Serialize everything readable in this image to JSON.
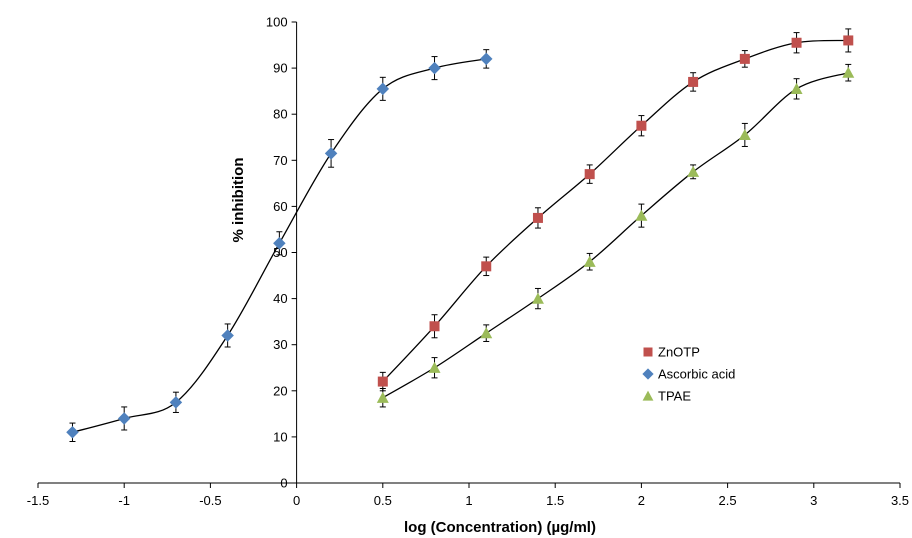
{
  "chart_data": {
    "type": "scatter",
    "xlabel": "log (Concentration) (µg/ml)",
    "ylabel": "% inhibition",
    "xlim": [
      -1.5,
      3.5
    ],
    "ylim": [
      0,
      100
    ],
    "x_ticks": [
      -1.5,
      -1,
      -0.5,
      0,
      0.5,
      1,
      1.5,
      2,
      2.5,
      3,
      3.5
    ],
    "x_tick_labels": [
      "-1.5",
      "-1",
      "-0.5",
      "0",
      "0.5",
      "1",
      "1.5",
      "2",
      "2.5",
      "3",
      "3.5"
    ],
    "y_ticks": [
      0,
      10,
      20,
      30,
      40,
      50,
      60,
      70,
      80,
      90,
      100
    ],
    "y_tick_labels": [
      "0",
      "10",
      "20",
      "30",
      "40",
      "50",
      "60",
      "70",
      "80",
      "90",
      "100"
    ],
    "grid": false,
    "legend_position": "bottom-right",
    "trendline": "smooth",
    "error_bars": true,
    "series": [
      {
        "name": "ZnOTP",
        "marker": "square",
        "color": "#c0504d",
        "x": [
          0.5,
          0.8,
          1.1,
          1.4,
          1.7,
          2.0,
          2.3,
          2.6,
          2.9,
          3.2
        ],
        "y": [
          22,
          34,
          47,
          57.5,
          67,
          77.5,
          87,
          92,
          95.5,
          96
        ],
        "error": [
          2,
          2.5,
          2,
          2.2,
          2,
          2.2,
          2,
          1.8,
          2.2,
          2.5
        ]
      },
      {
        "name": "Ascorbic acid",
        "marker": "diamond",
        "color": "#4f81bd",
        "x": [
          -1.3,
          -1.0,
          -0.7,
          -0.4,
          -0.1,
          0.2,
          0.5,
          0.8,
          1.1
        ],
        "y": [
          11,
          14,
          17.5,
          32,
          52,
          71.5,
          85.5,
          90,
          92
        ],
        "error": [
          2,
          2.5,
          2.2,
          2.5,
          2.5,
          3,
          2.5,
          2.5,
          2
        ]
      },
      {
        "name": "TPAE",
        "marker": "triangle",
        "color": "#9bbb59",
        "x": [
          0.5,
          0.8,
          1.1,
          1.4,
          1.7,
          2.0,
          2.3,
          2.6,
          2.9,
          3.2
        ],
        "y": [
          18.5,
          25,
          32.5,
          40,
          48,
          58,
          67.5,
          75.5,
          85.5,
          89
        ],
        "error": [
          2,
          2.2,
          1.8,
          2.2,
          1.8,
          2.5,
          1.5,
          2.5,
          2.2,
          1.8
        ]
      }
    ]
  }
}
